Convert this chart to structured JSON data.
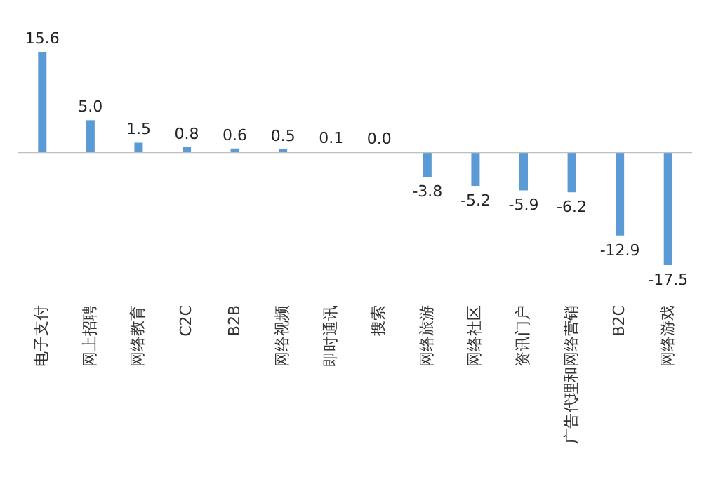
{
  "chart_data": {
    "type": "bar",
    "categories": [
      "电子支付",
      "网上招聘",
      "网络教育",
      "C2C",
      "B2B",
      "网络视频",
      "即时通讯",
      "搜索",
      "网络旅游",
      "网络社区",
      "资讯门户",
      "广告代理和网络营销",
      "B2C",
      "网络游戏"
    ],
    "values": [
      15.6,
      5.0,
      1.5,
      0.8,
      0.6,
      0.5,
      0.1,
      0.0,
      -3.8,
      -5.2,
      -5.9,
      -6.2,
      -12.9,
      -17.5
    ],
    "color": "#5b9bd5",
    "value_labels": [
      "15.6",
      "5.0",
      "1.5",
      "0.8",
      "0.6",
      "0.5",
      "0.1",
      "0.0",
      "-3.8",
      "-5.2",
      "-5.9",
      "-6.2",
      "-12.9",
      "-17.5"
    ]
  }
}
